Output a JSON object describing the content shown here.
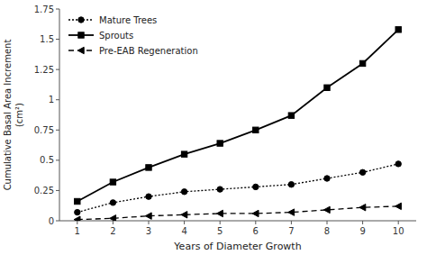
{
  "chart_data": {
    "type": "line",
    "xlabel": "Years of Diameter Growth",
    "ylabel": [
      "Cumulative Basal Area Increment",
      "(cm²)"
    ],
    "x": [
      1,
      2,
      3,
      4,
      5,
      6,
      7,
      8,
      9,
      10
    ],
    "series": [
      {
        "name": "Mature Trees",
        "color": "#000000",
        "marker": "circle",
        "line_style": "dotted",
        "values": [
          0.07,
          0.15,
          0.2,
          0.24,
          0.26,
          0.28,
          0.3,
          0.35,
          0.4,
          0.47
        ]
      },
      {
        "name": "Sprouts",
        "color": "#000000",
        "marker": "square",
        "line_style": "solid",
        "values": [
          0.16,
          0.32,
          0.44,
          0.55,
          0.64,
          0.75,
          0.87,
          1.1,
          1.3,
          1.58
        ]
      },
      {
        "name": "Pre-EAB Regeneration",
        "color": "#000000",
        "marker": "triangle-left",
        "line_style": "dashed",
        "values": [
          0.01,
          0.02,
          0.04,
          0.05,
          0.06,
          0.06,
          0.07,
          0.09,
          0.11,
          0.12
        ]
      }
    ],
    "xlim": [
      0.5,
      10.5
    ],
    "ylim": [
      0,
      1.75
    ],
    "xticks": [
      1,
      2,
      3,
      4,
      5,
      6,
      7,
      8,
      9,
      10
    ],
    "yticks": [
      0,
      0.25,
      0.5,
      0.75,
      1,
      1.25,
      1.5,
      1.75
    ],
    "grid": false,
    "legend": "upper left"
  }
}
